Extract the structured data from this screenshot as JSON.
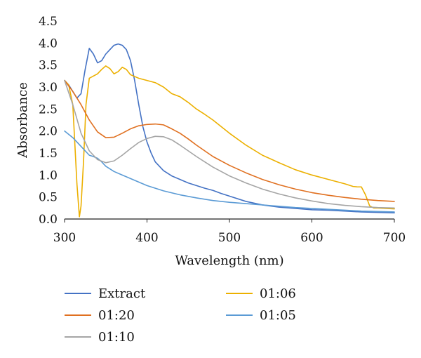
{
  "chart_data": {
    "type": "line",
    "title": "",
    "xlabel": "Wavelength (nm)",
    "ylabel": "Absorbance",
    "xlim": [
      300,
      700
    ],
    "ylim": [
      0,
      4.5
    ],
    "x_ticks": [
      300,
      400,
      500,
      600,
      700
    ],
    "x_tick_labels": [
      "300",
      "400",
      "500",
      "600",
      "700"
    ],
    "y_ticks": [
      0,
      0.5,
      1,
      1.5,
      2,
      2.5,
      3,
      3.5,
      4,
      4.5
    ],
    "y_tick_labels": [
      "0.0",
      "0.5",
      "1.0",
      "1.5",
      "2.0",
      "2.5",
      "3.0",
      "3.5",
      "4.0",
      "4.5"
    ],
    "grid": false,
    "legend_position": "bottom",
    "series": [
      {
        "name": "Extract",
        "color": "#4472C4",
        "points": [
          [
            300,
            3.15
          ],
          [
            305,
            3.05
          ],
          [
            310,
            2.9
          ],
          [
            315,
            2.75
          ],
          [
            320,
            2.85
          ],
          [
            325,
            3.4
          ],
          [
            330,
            3.88
          ],
          [
            335,
            3.75
          ],
          [
            340,
            3.55
          ],
          [
            345,
            3.6
          ],
          [
            350,
            3.75
          ],
          [
            355,
            3.85
          ],
          [
            360,
            3.95
          ],
          [
            365,
            3.98
          ],
          [
            370,
            3.95
          ],
          [
            375,
            3.85
          ],
          [
            380,
            3.6
          ],
          [
            385,
            3.15
          ],
          [
            390,
            2.6
          ],
          [
            395,
            2.1
          ],
          [
            400,
            1.75
          ],
          [
            405,
            1.5
          ],
          [
            410,
            1.3
          ],
          [
            420,
            1.1
          ],
          [
            430,
            0.98
          ],
          [
            440,
            0.9
          ],
          [
            450,
            0.82
          ],
          [
            460,
            0.76
          ],
          [
            470,
            0.7
          ],
          [
            480,
            0.65
          ],
          [
            490,
            0.58
          ],
          [
            500,
            0.52
          ],
          [
            520,
            0.4
          ],
          [
            540,
            0.32
          ],
          [
            560,
            0.27
          ],
          [
            580,
            0.24
          ],
          [
            600,
            0.21
          ],
          [
            620,
            0.2
          ],
          [
            640,
            0.18
          ],
          [
            660,
            0.16
          ],
          [
            680,
            0.15
          ],
          [
            700,
            0.14
          ]
        ]
      },
      {
        "name": "01:06",
        "color": "#ECB000",
        "points": [
          [
            300,
            3.15
          ],
          [
            305,
            3.05
          ],
          [
            310,
            2.6
          ],
          [
            315,
            0.8
          ],
          [
            318,
            0.05
          ],
          [
            320,
            0.3
          ],
          [
            323,
            1.3
          ],
          [
            326,
            2.6
          ],
          [
            330,
            3.2
          ],
          [
            335,
            3.25
          ],
          [
            340,
            3.3
          ],
          [
            345,
            3.4
          ],
          [
            350,
            3.48
          ],
          [
            355,
            3.42
          ],
          [
            360,
            3.3
          ],
          [
            365,
            3.35
          ],
          [
            370,
            3.45
          ],
          [
            375,
            3.4
          ],
          [
            380,
            3.28
          ],
          [
            390,
            3.2
          ],
          [
            400,
            3.15
          ],
          [
            410,
            3.1
          ],
          [
            420,
            3.0
          ],
          [
            430,
            2.85
          ],
          [
            440,
            2.78
          ],
          [
            450,
            2.65
          ],
          [
            460,
            2.5
          ],
          [
            470,
            2.38
          ],
          [
            480,
            2.25
          ],
          [
            490,
            2.1
          ],
          [
            500,
            1.95
          ],
          [
            520,
            1.68
          ],
          [
            540,
            1.45
          ],
          [
            560,
            1.28
          ],
          [
            580,
            1.12
          ],
          [
            600,
            1.0
          ],
          [
            620,
            0.9
          ],
          [
            640,
            0.8
          ],
          [
            650,
            0.74
          ],
          [
            655,
            0.73
          ],
          [
            660,
            0.73
          ],
          [
            665,
            0.55
          ],
          [
            670,
            0.3
          ],
          [
            675,
            0.25
          ],
          [
            680,
            0.25
          ],
          [
            700,
            0.23
          ]
        ]
      },
      {
        "name": "01:20",
        "color": "#E07020",
        "points": [
          [
            300,
            3.15
          ],
          [
            310,
            2.9
          ],
          [
            320,
            2.6
          ],
          [
            330,
            2.25
          ],
          [
            340,
            1.98
          ],
          [
            350,
            1.85
          ],
          [
            360,
            1.86
          ],
          [
            370,
            1.95
          ],
          [
            380,
            2.05
          ],
          [
            390,
            2.12
          ],
          [
            400,
            2.15
          ],
          [
            410,
            2.16
          ],
          [
            420,
            2.14
          ],
          [
            430,
            2.05
          ],
          [
            440,
            1.95
          ],
          [
            450,
            1.82
          ],
          [
            460,
            1.68
          ],
          [
            470,
            1.55
          ],
          [
            480,
            1.42
          ],
          [
            490,
            1.32
          ],
          [
            500,
            1.22
          ],
          [
            520,
            1.05
          ],
          [
            540,
            0.9
          ],
          [
            560,
            0.78
          ],
          [
            580,
            0.68
          ],
          [
            600,
            0.6
          ],
          [
            620,
            0.54
          ],
          [
            640,
            0.49
          ],
          [
            660,
            0.45
          ],
          [
            680,
            0.42
          ],
          [
            700,
            0.4
          ]
        ]
      },
      {
        "name": "01:05",
        "color": "#5B9BD5",
        "points": [
          [
            300,
            2.0
          ],
          [
            310,
            1.85
          ],
          [
            320,
            1.65
          ],
          [
            330,
            1.45
          ],
          [
            335,
            1.42
          ],
          [
            340,
            1.38
          ],
          [
            345,
            1.3
          ],
          [
            350,
            1.2
          ],
          [
            360,
            1.08
          ],
          [
            370,
            1.0
          ],
          [
            380,
            0.92
          ],
          [
            390,
            0.84
          ],
          [
            400,
            0.76
          ],
          [
            410,
            0.7
          ],
          [
            420,
            0.64
          ],
          [
            440,
            0.55
          ],
          [
            460,
            0.48
          ],
          [
            480,
            0.42
          ],
          [
            500,
            0.38
          ],
          [
            520,
            0.35
          ],
          [
            540,
            0.32
          ],
          [
            560,
            0.29
          ],
          [
            580,
            0.26
          ],
          [
            600,
            0.24
          ],
          [
            620,
            0.22
          ],
          [
            640,
            0.2
          ],
          [
            660,
            0.18
          ],
          [
            680,
            0.17
          ],
          [
            700,
            0.16
          ]
        ]
      },
      {
        "name": "01:10",
        "color": "#A5A5A5",
        "points": [
          [
            300,
            3.15
          ],
          [
            310,
            2.6
          ],
          [
            320,
            1.95
          ],
          [
            330,
            1.55
          ],
          [
            340,
            1.35
          ],
          [
            350,
            1.28
          ],
          [
            360,
            1.32
          ],
          [
            370,
            1.45
          ],
          [
            380,
            1.6
          ],
          [
            390,
            1.74
          ],
          [
            400,
            1.83
          ],
          [
            410,
            1.88
          ],
          [
            420,
            1.87
          ],
          [
            430,
            1.8
          ],
          [
            440,
            1.68
          ],
          [
            450,
            1.55
          ],
          [
            460,
            1.42
          ],
          [
            470,
            1.3
          ],
          [
            480,
            1.18
          ],
          [
            490,
            1.08
          ],
          [
            500,
            0.98
          ],
          [
            520,
            0.82
          ],
          [
            540,
            0.68
          ],
          [
            560,
            0.57
          ],
          [
            580,
            0.48
          ],
          [
            600,
            0.41
          ],
          [
            620,
            0.35
          ],
          [
            640,
            0.31
          ],
          [
            660,
            0.28
          ],
          [
            680,
            0.26
          ],
          [
            700,
            0.25
          ]
        ]
      }
    ]
  }
}
